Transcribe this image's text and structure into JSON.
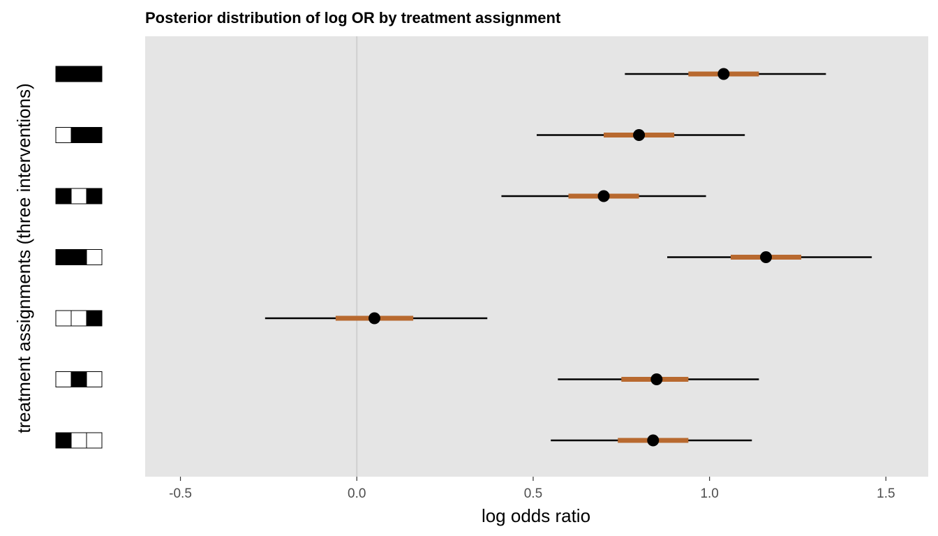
{
  "chart_data": {
    "type": "interval",
    "title": "Posterior distribution of log OR by treatment assignment",
    "xlabel": "log odds ratio",
    "ylabel": "treatment assignments (three interventions)",
    "xlim": [
      -0.6,
      1.62
    ],
    "xticks": [
      -0.5,
      0.0,
      0.5,
      1.0,
      1.5
    ],
    "xtick_labels": [
      "-0.5",
      "0.0",
      "0.5",
      "1.0",
      "1.5"
    ],
    "reference_line_x": 0,
    "grid": false,
    "colors": {
      "panel_background": "#e5e5e5",
      "inner_interval": "#b8692f",
      "outer_interval": "#000000",
      "point": "#000000",
      "reference_line": "#cfcfcf",
      "assignment_on": "#000000",
      "assignment_off": "#ffffff"
    },
    "rows": [
      {
        "assignment": [
          1,
          1,
          1
        ],
        "median": 1.04,
        "inner": [
          0.94,
          1.14
        ],
        "outer": [
          0.76,
          1.33
        ]
      },
      {
        "assignment": [
          0,
          1,
          1
        ],
        "median": 0.8,
        "inner": [
          0.7,
          0.9
        ],
        "outer": [
          0.51,
          1.1
        ]
      },
      {
        "assignment": [
          1,
          0,
          1
        ],
        "median": 0.7,
        "inner": [
          0.6,
          0.8
        ],
        "outer": [
          0.41,
          0.99
        ]
      },
      {
        "assignment": [
          1,
          1,
          0
        ],
        "median": 1.16,
        "inner": [
          1.06,
          1.26
        ],
        "outer": [
          0.88,
          1.46
        ]
      },
      {
        "assignment": [
          0,
          0,
          1
        ],
        "median": 0.05,
        "inner": [
          -0.06,
          0.16
        ],
        "outer": [
          -0.26,
          0.37
        ]
      },
      {
        "assignment": [
          0,
          1,
          0
        ],
        "median": 0.85,
        "inner": [
          0.75,
          0.94
        ],
        "outer": [
          0.57,
          1.14
        ]
      },
      {
        "assignment": [
          1,
          0,
          0
        ],
        "median": 0.84,
        "inner": [
          0.74,
          0.94
        ],
        "outer": [
          0.55,
          1.12
        ]
      }
    ]
  }
}
